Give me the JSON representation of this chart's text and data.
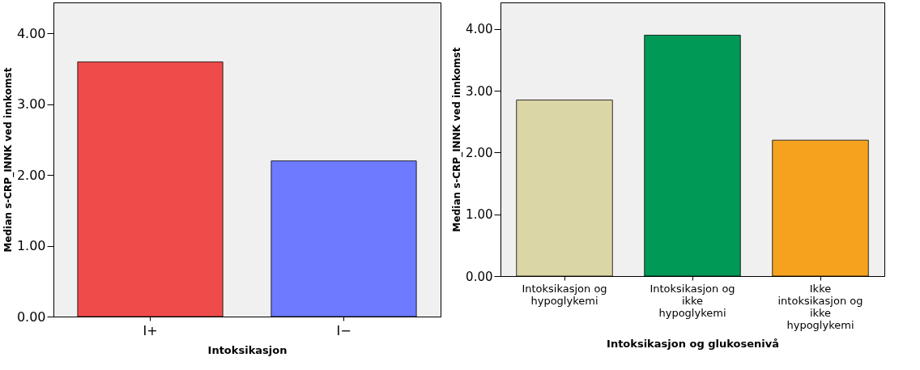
{
  "chart_data": [
    {
      "type": "bar",
      "categories": [
        "I+",
        "I−"
      ],
      "values": [
        3.6,
        2.2
      ],
      "colors": [
        "#f04b4b",
        "#6e7aff"
      ],
      "xlabel": "Intoksikasjon",
      "ylabel": "Median s-CRP_INNK ved innkomst",
      "ylim": [
        0,
        4.44
      ],
      "yticks": [
        {
          "value": 0,
          "label": "0.00"
        },
        {
          "value": 1,
          "label": "1.00"
        },
        {
          "value": 2,
          "label": "2.00"
        },
        {
          "value": 3,
          "label": "3.00"
        },
        {
          "value": 4,
          "label": "4.00"
        }
      ],
      "grid": false,
      "legend": false
    },
    {
      "type": "bar",
      "categories": [
        "Intoksikasjon og\nhypoglykemi",
        "Intoksikasjon og\nikke\nhypoglykemi",
        "Ikke\nintoksikasjon og\nikke\nhypoglykemi"
      ],
      "values": [
        2.85,
        3.9,
        2.2
      ],
      "colors": [
        "#dbd6a5",
        "#009955",
        "#f6a21f"
      ],
      "xlabel": "Intoksikasjon og glukosenivå",
      "ylabel": "Median s-CRP_INNK ved innkomst",
      "ylim": [
        0,
        4.43
      ],
      "yticks": [
        {
          "value": 0,
          "label": "0.00"
        },
        {
          "value": 1,
          "label": "1.00"
        },
        {
          "value": 2,
          "label": "2.00"
        },
        {
          "value": 3,
          "label": "3.00"
        },
        {
          "value": 4,
          "label": "4.00"
        }
      ],
      "grid": false,
      "legend": false
    }
  ]
}
